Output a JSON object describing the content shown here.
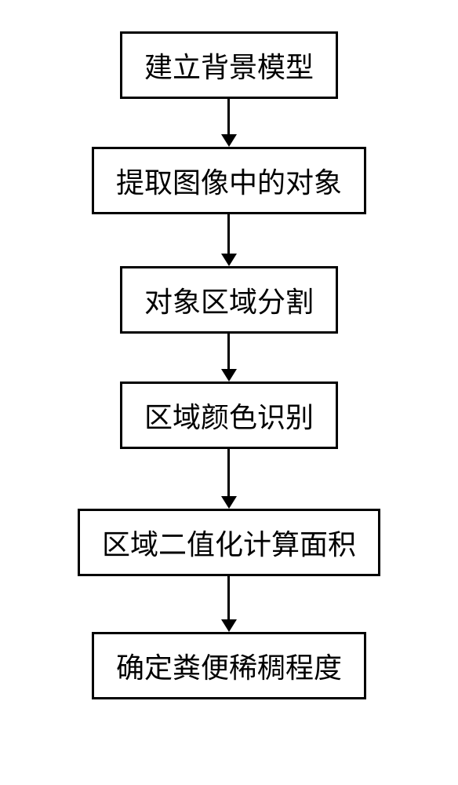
{
  "flowchart": {
    "type": "flowchart",
    "direction": "vertical",
    "background_color": "#ffffff",
    "node_border_color": "#000000",
    "node_border_width": 3,
    "node_fill_color": "#ffffff",
    "node_text_color": "#000000",
    "node_font_size": 36,
    "node_font_family": "SimSun",
    "arrow_color": "#000000",
    "arrow_line_width": 3,
    "arrow_head_size": 16,
    "nodes": [
      {
        "id": "n1",
        "label": "建立背景模型",
        "arrow_line_height": 45
      },
      {
        "id": "n2",
        "label": "提取图像中的对象",
        "arrow_line_height": 50
      },
      {
        "id": "n3",
        "label": "对象区域分割",
        "arrow_line_height": 45
      },
      {
        "id": "n4",
        "label": "区域颜色识别",
        "arrow_line_height": 60
      },
      {
        "id": "n5",
        "label": "区域二值化计算面积",
        "arrow_line_height": 55
      },
      {
        "id": "n6",
        "label": "确定粪便稀稠程度",
        "arrow_line_height": 0
      }
    ]
  }
}
